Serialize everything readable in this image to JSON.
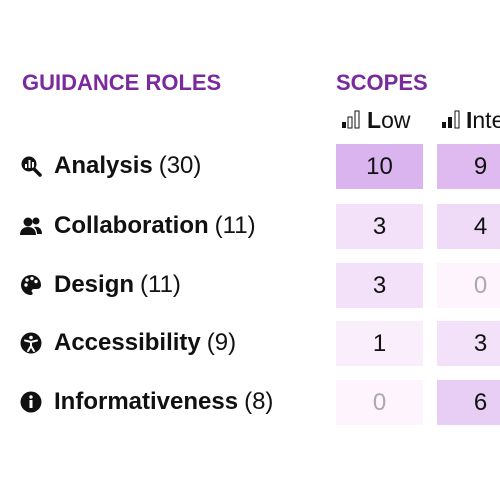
{
  "header": {
    "title": "GUIDANCE ROLES",
    "scopes": "SCOPES"
  },
  "columns": [
    "Low",
    "Inte"
  ],
  "rows": [
    {
      "name": "Analysis",
      "count": "(30)",
      "values": [
        10,
        9
      ]
    },
    {
      "name": "Collaboration",
      "count": "(11)",
      "values": [
        3,
        4
      ]
    },
    {
      "name": "Design",
      "count": "(11)",
      "values": [
        3,
        0
      ]
    },
    {
      "name": "Accessibility",
      "count": "(9)",
      "values": [
        1,
        3
      ]
    },
    {
      "name": "Informativeness",
      "count": "(8)",
      "values": [
        0,
        6
      ]
    }
  ]
}
